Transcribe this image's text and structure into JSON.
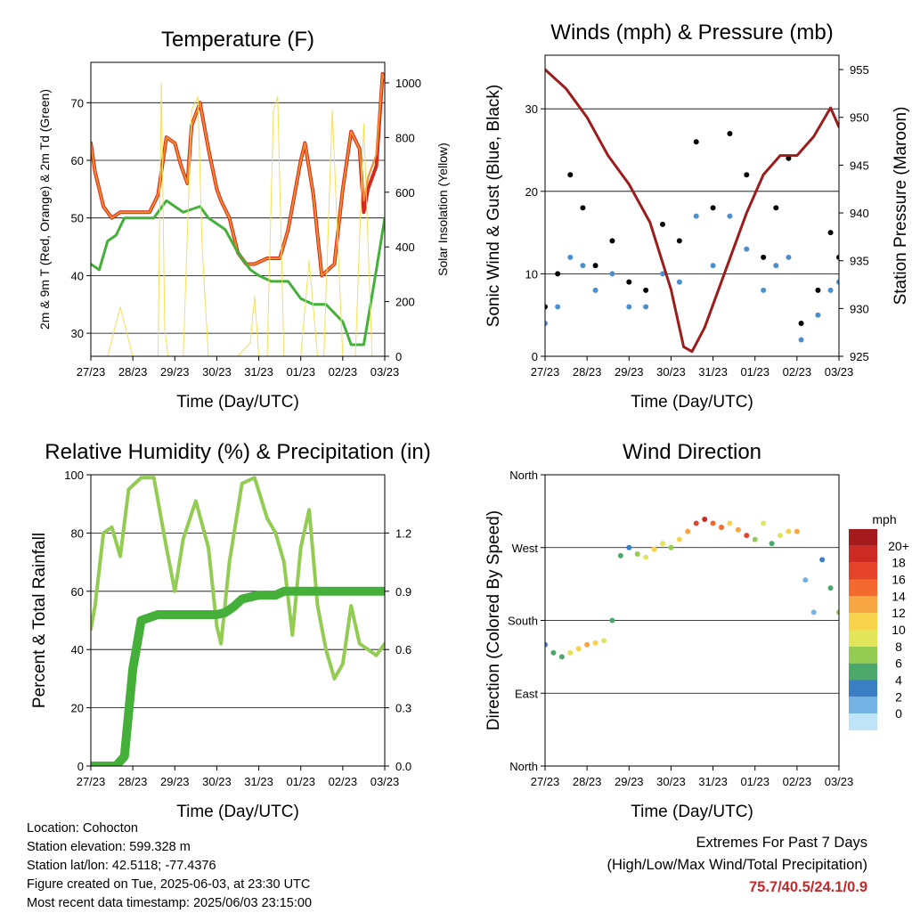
{
  "footer": {
    "location": "Location: Cohocton",
    "elevation": "Station elevation: 599.328 m",
    "latlon": "Station lat/lon: 42.5118; -77.4376",
    "created": "Figure created on Tue, 2025-06-03, at 23:30 UTC",
    "recent": "Most recent data timestamp: 2025/06/03 23:15:00",
    "extremes_title": "Extremes For Past 7 Days",
    "extremes_sub": "(High/Low/Max Wind/Total Precipitation)",
    "extremes_value": "75.7/40.5/24.1/0.9"
  },
  "colors": {
    "temp_2m": "#d42a1e",
    "temp_9m": "#f08c2c",
    "dewpoint": "#44b03a",
    "solar": "#f2df5a",
    "gust": "#000000",
    "wind": "#4a8fd0",
    "pressure": "#9c1c1c",
    "rh": "#93cc52",
    "precip": "#44b03a"
  },
  "x_ticks": [
    "27/23",
    "28/23",
    "29/23",
    "30/23",
    "31/23",
    "01/23",
    "02/23",
    "03/23"
  ],
  "chart_data": [
    {
      "type": "line",
      "title": "Temperature (F)",
      "xlabel": "Time (Day/UTC)",
      "ylabel": "2m & 9m T (Red, Orange) & 2m Td (Green)",
      "ylabel_right": "Solar Insolation (Yellow)",
      "ylim": [
        26,
        77
      ],
      "ylim_right": [
        0,
        1075
      ],
      "yticks": [
        30,
        40,
        50,
        60,
        70
      ],
      "yticks_right": [
        0,
        200,
        400,
        600,
        800,
        1000
      ],
      "grid": true,
      "series": [
        {
          "key": "temp_2m",
          "width": 4,
          "x": [
            0,
            0.1,
            0.3,
            0.5,
            0.7,
            1.0,
            1.4,
            1.6,
            1.8,
            2.0,
            2.15,
            2.3,
            2.4,
            2.6,
            2.8,
            3.0,
            3.1,
            3.3,
            3.5,
            3.7,
            3.9,
            4.2,
            4.5,
            4.7,
            5.0,
            5.1,
            5.3,
            5.5,
            5.8,
            6.0,
            6.2,
            6.4,
            6.5,
            6.6,
            6.8,
            6.95,
            7.0
          ],
          "y": [
            63,
            58,
            52,
            50,
            51,
            51,
            51,
            54,
            64,
            63,
            59,
            56,
            66,
            70,
            62,
            55,
            53,
            50,
            44,
            42,
            42,
            43,
            43,
            48,
            60,
            63,
            54,
            40,
            42,
            55,
            65,
            62,
            51,
            55,
            59,
            75,
            74
          ]
        },
        {
          "key": "temp_9m",
          "width": 2,
          "x": [
            0,
            0.1,
            0.3,
            0.5,
            0.7,
            1.0,
            1.4,
            1.6,
            1.8,
            2.0,
            2.15,
            2.3,
            2.4,
            2.6,
            2.8,
            3.0,
            3.1,
            3.3,
            3.5,
            3.7,
            3.9,
            4.2,
            4.5,
            4.7,
            5.0,
            5.1,
            5.3,
            5.5,
            5.8,
            6.0,
            6.2,
            6.4,
            6.5,
            6.6,
            6.8,
            6.95,
            7.0
          ],
          "y": [
            63,
            58,
            52,
            50,
            51,
            51,
            51,
            54,
            64,
            63,
            59,
            56,
            66,
            70,
            62,
            55,
            53,
            50,
            44,
            42,
            42,
            43,
            43,
            48,
            60,
            63,
            54,
            40,
            42,
            55,
            65,
            62,
            53,
            57,
            61,
            75,
            74
          ]
        },
        {
          "key": "dewpoint",
          "width": 3,
          "x": [
            0,
            0.2,
            0.4,
            0.6,
            0.8,
            1.0,
            1.5,
            1.8,
            2.0,
            2.2,
            2.6,
            2.8,
            3.2,
            3.5,
            3.8,
            4.0,
            4.3,
            4.7,
            5.0,
            5.3,
            5.6,
            6.0,
            6.2,
            6.5,
            6.8,
            7.0
          ],
          "y": [
            42,
            41,
            46,
            47,
            50,
            50,
            50,
            53,
            52,
            51,
            52,
            50,
            48,
            44,
            41,
            40,
            39,
            39,
            36,
            35,
            35,
            32,
            28,
            28,
            41,
            50
          ]
        },
        {
          "key": "solar",
          "width": 1,
          "axis": "right",
          "x": [
            0.4,
            0.7,
            1.0,
            1.6,
            1.68,
            1.76,
            1.84,
            2.2,
            2.4,
            2.55,
            2.65,
            2.8,
            3.0,
            3.5,
            3.8,
            3.9,
            4.0,
            4.2,
            4.35,
            4.45,
            4.6,
            4.8,
            5.0,
            5.2,
            5.4,
            5.55,
            5.75,
            6.0,
            6.3,
            6.5,
            6.7,
            7.0
          ],
          "y": [
            0,
            180,
            0,
            0,
            1000,
            100,
            0,
            0,
            900,
            950,
            400,
            0,
            0,
            0,
            50,
            220,
            0,
            0,
            900,
            950,
            0,
            0,
            0,
            350,
            0,
            0,
            900,
            0,
            0,
            850,
            0,
            0
          ]
        }
      ]
    },
    {
      "type": "scatter",
      "title": "Winds (mph) & Pressure (mb)",
      "xlabel": "Time (Day/UTC)",
      "ylabel": "Sonic Wind & Gust (Blue, Black)",
      "ylabel_right": "Station Pressure (Maroon)",
      "ylim": [
        0,
        36.5
      ],
      "ylim_right": [
        925,
        956.5
      ],
      "yticks": [
        0,
        10,
        20,
        30
      ],
      "yticks_right": [
        925,
        930,
        935,
        940,
        945,
        950,
        955
      ],
      "grid": true,
      "series": [
        {
          "key": "gust",
          "x": [
            0,
            0.3,
            0.6,
            0.9,
            1.2,
            1.6,
            2.0,
            2.4,
            2.8,
            3.2,
            3.6,
            4.0,
            4.4,
            4.8,
            5.2,
            5.5,
            5.8,
            6.1,
            6.5,
            6.8,
            7.0
          ],
          "y": [
            6,
            10,
            22,
            18,
            11,
            14,
            9,
            8,
            16,
            14,
            26,
            18,
            27,
            22,
            12,
            18,
            24,
            4,
            8,
            15,
            12
          ]
        },
        {
          "key": "wind",
          "x": [
            0,
            0.3,
            0.6,
            0.9,
            1.2,
            1.6,
            2.0,
            2.4,
            2.8,
            3.2,
            3.6,
            4.0,
            4.4,
            4.8,
            5.2,
            5.5,
            5.8,
            6.1,
            6.5,
            6.8,
            7.0
          ],
          "y": [
            4,
            6,
            12,
            11,
            8,
            10,
            6,
            6,
            10,
            9,
            17,
            11,
            17,
            13,
            8,
            11,
            12,
            2,
            5,
            8,
            9
          ]
        },
        {
          "key": "pressure",
          "axis": "right",
          "width": 3,
          "x": [
            0,
            0.5,
            1.0,
            1.5,
            2.0,
            2.5,
            3.0,
            3.3,
            3.5,
            3.8,
            4.3,
            4.8,
            5.2,
            5.6,
            6.0,
            6.4,
            6.8,
            7.0
          ],
          "y": [
            955,
            953,
            950,
            946,
            943,
            939,
            932,
            926,
            925.5,
            928,
            934,
            940,
            944,
            946,
            946,
            948,
            951,
            949
          ]
        }
      ]
    },
    {
      "type": "line",
      "title": "Relative Humidity (%) & Precipitation (in)",
      "xlabel": "Time (Day/UTC)",
      "ylabel": "Percent & Total Rainfall",
      "ylim": [
        0,
        100
      ],
      "ylim_right": [
        0,
        1.5
      ],
      "yticks": [
        0,
        20,
        40,
        60,
        80,
        100
      ],
      "yticks_right": [
        0.0,
        0.3,
        0.6,
        0.9,
        1.2
      ],
      "grid": true,
      "series": [
        {
          "key": "rh",
          "width": 4,
          "x": [
            0,
            0.1,
            0.3,
            0.5,
            0.7,
            0.9,
            1.2,
            1.5,
            1.8,
            2.0,
            2.2,
            2.5,
            2.8,
            3.0,
            3.1,
            3.3,
            3.6,
            3.9,
            4.2,
            4.4,
            4.6,
            4.8,
            5.0,
            5.2,
            5.4,
            5.6,
            5.8,
            6.0,
            6.2,
            6.4,
            6.6,
            6.8,
            7.0
          ],
          "y": [
            47,
            55,
            80,
            82,
            72,
            95,
            99,
            99,
            75,
            60,
            78,
            91,
            75,
            48,
            42,
            70,
            97,
            99,
            85,
            80,
            70,
            45,
            75,
            88,
            55,
            40,
            30,
            35,
            55,
            42,
            40,
            38,
            42
          ]
        },
        {
          "key": "precip",
          "width": 10,
          "axis": "right",
          "x": [
            0,
            0.6,
            0.8,
            1.0,
            1.2,
            1.6,
            2.0,
            2.5,
            3.0,
            3.2,
            3.4,
            3.6,
            4.0,
            4.4,
            4.6,
            5.0,
            7.0
          ],
          "y": [
            0,
            0,
            0.05,
            0.5,
            0.75,
            0.78,
            0.78,
            0.78,
            0.78,
            0.79,
            0.82,
            0.86,
            0.88,
            0.88,
            0.9,
            0.9,
            0.9
          ]
        }
      ]
    },
    {
      "type": "scatter",
      "title": "Wind Direction",
      "xlabel": "Time (Day/UTC)",
      "ylabel": "Direction (Colored By Speed)",
      "ylim": [
        0,
        360
      ],
      "ytick_labels": [
        "North",
        "East",
        "South",
        "West",
        "North"
      ],
      "yticks": [
        0,
        90,
        180,
        270,
        360
      ],
      "grid": true,
      "colorbar_title": "mph",
      "colorbar_labels": [
        "20+",
        "18",
        "16",
        "14",
        "12",
        "10",
        "8",
        "6",
        "4",
        "2",
        "0"
      ],
      "colorbar_colors": [
        "#a51b1b",
        "#cc2a22",
        "#e5442a",
        "#f26a2e",
        "#f8a642",
        "#f7d24a",
        "#e2e55a",
        "#94cc52",
        "#4ca86a",
        "#3a7fc4",
        "#74b4e4",
        "#bfe3f7"
      ],
      "series": [
        {
          "key": "direction",
          "x": [
            0,
            0.2,
            0.4,
            0.6,
            0.8,
            1.0,
            1.2,
            1.4,
            1.6,
            1.8,
            2.0,
            2.2,
            2.4,
            2.6,
            2.8,
            3.0,
            3.2,
            3.4,
            3.6,
            3.8,
            4.0,
            4.2,
            4.4,
            4.6,
            4.8,
            5.0,
            5.2,
            5.4,
            5.6,
            5.8,
            6.0,
            6.2,
            6.4,
            6.6,
            6.8,
            7.0
          ],
          "y": [
            150,
            140,
            135,
            140,
            145,
            150,
            152,
            155,
            180,
            260,
            270,
            262,
            258,
            268,
            275,
            270,
            280,
            290,
            300,
            305,
            300,
            295,
            300,
            292,
            285,
            280,
            300,
            275,
            285,
            290,
            290,
            230,
            190,
            255,
            220,
            190
          ],
          "speed": [
            3,
            5,
            6,
            9,
            12,
            14,
            12,
            10,
            6,
            5,
            4,
            8,
            10,
            12,
            9,
            7,
            11,
            14,
            18,
            20,
            16,
            15,
            12,
            13,
            17,
            8,
            10,
            6,
            9,
            12,
            14,
            2,
            1,
            3,
            6,
            8
          ]
        }
      ]
    }
  ]
}
